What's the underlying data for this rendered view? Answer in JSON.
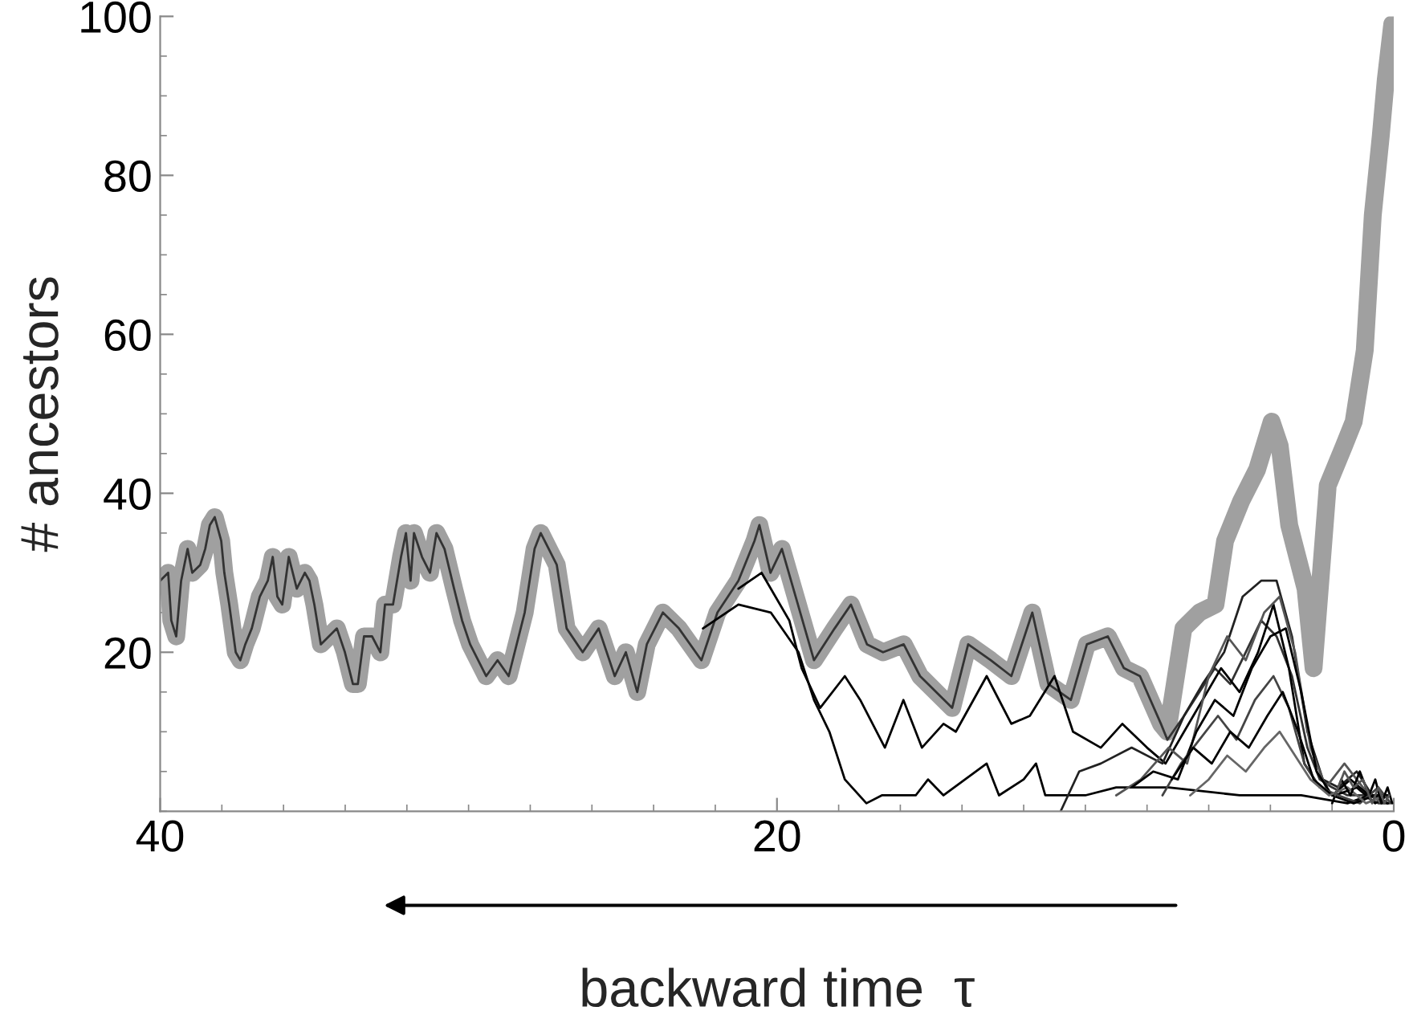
{
  "chart_data": {
    "type": "line",
    "xlabel": "backward time  τ",
    "ylabel": "# ancestors",
    "xlim": [
      40,
      0
    ],
    "xticks": [
      40,
      20,
      0
    ],
    "ylim": [
      0,
      100
    ],
    "yticks": [
      20,
      40,
      60,
      80,
      100
    ],
    "grid": false,
    "legend": false,
    "series": [
      {
        "color": "#a0a0a0",
        "x": [
          40.0,
          39.74,
          39.64,
          39.48,
          39.32,
          39.11,
          38.96,
          38.7,
          38.54,
          38.39,
          38.23,
          38.02,
          37.92,
          37.76,
          37.55,
          37.4,
          37.24,
          37.03,
          36.77,
          36.51,
          36.35,
          36.2,
          36.04,
          35.83,
          35.57,
          35.31,
          35.16,
          35.0,
          34.79,
          34.53,
          34.27,
          34.01,
          33.75,
          33.59,
          33.39,
          33.13,
          32.86,
          32.71,
          32.45,
          32.19,
          32.03,
          31.88,
          31.77,
          31.51,
          31.25,
          31.04,
          30.78,
          30.47,
          30.21,
          29.95,
          29.43,
          29.06,
          28.7,
          28.18,
          27.86,
          27.66,
          27.14,
          26.82,
          26.3,
          25.78,
          25.26,
          24.9,
          24.53,
          24.22,
          23.7,
          23.18,
          22.45,
          21.93,
          21.25,
          20.73,
          20.57,
          20.21,
          19.84,
          19.32,
          18.8,
          18.13,
          17.6,
          17.08,
          16.56,
          15.89,
          15.36,
          14.84,
          14.32,
          13.8,
          13.07,
          12.4,
          11.72,
          11.2,
          10.47,
          9.95,
          9.27,
          8.75,
          8.23,
          7.55,
          7.34,
          6.82,
          6.3,
          5.78,
          5.47,
          4.95,
          4.43,
          3.96,
          3.7,
          3.39,
          2.86,
          2.6,
          2.34,
          2.14,
          1.61,
          1.3,
          0.94,
          0.68,
          0.42,
          0.26,
          0.05
        ],
        "values": [
          29,
          30,
          24,
          22,
          29,
          33,
          30,
          31,
          33,
          36,
          37,
          34,
          30,
          26,
          20,
          19,
          21,
          23,
          27,
          29,
          32,
          27,
          26,
          32,
          28,
          30,
          29,
          26,
          21,
          22,
          23,
          20,
          16,
          16,
          22,
          22,
          20,
          26,
          26,
          32,
          35,
          29,
          35,
          32,
          30,
          35,
          33,
          28,
          24,
          21,
          17,
          19,
          17,
          25,
          33,
          35,
          31,
          23,
          20,
          23,
          17,
          20,
          15,
          21,
          25,
          23,
          19,
          25,
          29,
          34,
          36,
          30,
          33,
          26,
          19,
          23,
          26,
          21,
          20,
          21,
          17,
          15,
          13,
          21,
          19,
          17,
          25,
          16,
          14,
          21,
          22,
          18,
          17,
          11,
          10,
          23,
          25,
          26,
          34,
          39,
          43,
          49,
          46,
          36,
          28,
          18,
          31,
          41,
          46,
          49,
          58,
          75,
          85,
          92,
          99
        ]
      },
      {
        "color": "#333333",
        "x": [
          40.0,
          39.74,
          39.64,
          39.48,
          39.32,
          39.11,
          38.96,
          38.7,
          38.54,
          38.39,
          38.23,
          38.02,
          37.92,
          37.76,
          37.55,
          37.4,
          37.24,
          37.03,
          36.77,
          36.51,
          36.35,
          36.2,
          36.04,
          35.83,
          35.57,
          35.31,
          35.16,
          35.0,
          34.79,
          34.53,
          34.27,
          34.01,
          33.75,
          33.59,
          33.39,
          33.13,
          32.86,
          32.71,
          32.45,
          32.19,
          32.03,
          31.88,
          31.77,
          31.51,
          31.25,
          31.04,
          30.78,
          30.47,
          30.21,
          29.95,
          29.43,
          29.06,
          28.7,
          28.18,
          27.86,
          27.66,
          27.14,
          26.82,
          26.3,
          25.78,
          25.26,
          24.9,
          24.53,
          24.22,
          23.7,
          23.18,
          22.45,
          21.93,
          21.25,
          20.73,
          20.57,
          20.21,
          19.84,
          19.32,
          18.8,
          18.13,
          17.6,
          17.08,
          16.56,
          15.89,
          15.36,
          14.84,
          14.32,
          13.8,
          13.07,
          12.4,
          11.72,
          11.2,
          10.47,
          9.95,
          9.27,
          8.75,
          8.23,
          7.55,
          7.34,
          6.8,
          6.3,
          5.8,
          5.3,
          4.8,
          4.3,
          3.8,
          3.3,
          2.8,
          2.4,
          2.0,
          1.5,
          1.0,
          0.5,
          0.15
        ],
        "values": [
          29,
          30,
          24,
          22,
          29,
          33,
          30,
          31,
          33,
          36,
          37,
          34,
          30,
          26,
          20,
          19,
          21,
          23,
          27,
          29,
          32,
          27,
          26,
          32,
          28,
          30,
          29,
          26,
          21,
          22,
          23,
          20,
          16,
          16,
          22,
          22,
          20,
          26,
          26,
          32,
          35,
          29,
          35,
          32,
          30,
          35,
          33,
          28,
          24,
          21,
          17,
          19,
          17,
          25,
          33,
          35,
          31,
          23,
          20,
          23,
          17,
          20,
          15,
          21,
          25,
          23,
          19,
          25,
          29,
          34,
          36,
          30,
          33,
          26,
          19,
          23,
          26,
          21,
          20,
          21,
          17,
          15,
          13,
          21,
          19,
          17,
          25,
          16,
          14,
          21,
          22,
          18,
          17,
          11,
          9,
          12,
          15,
          18,
          16,
          20,
          24,
          22,
          17,
          8,
          4,
          3,
          2,
          2,
          1,
          1
        ]
      },
      {
        "color": "#000000",
        "x": [
          22.4,
          21.25,
          20.2,
          19.3,
          18.8,
          18.3,
          17.8,
          17.1,
          16.6,
          15.5,
          15.1,
          14.6,
          13.2,
          12.8,
          12.0,
          11.6,
          11.3,
          10.0,
          9.0,
          7.3,
          5.0,
          3.0,
          1.5,
          0.8,
          0.2
        ],
        "values": [
          23,
          26,
          25,
          20,
          14,
          10,
          4,
          1,
          2,
          2,
          4,
          2,
          6,
          2,
          4,
          6,
          2,
          2,
          3,
          3,
          2,
          2,
          1,
          2,
          1
        ]
      },
      {
        "color": "#000000",
        "x": [
          21.25,
          20.5,
          19.6,
          19.2,
          18.6,
          17.8,
          17.3,
          16.5,
          15.9,
          15.3,
          14.6,
          14.2,
          13.2,
          12.4,
          11.8,
          11.0,
          10.4,
          9.5,
          8.8,
          8.0,
          7.4,
          6.8,
          6.2,
          5.6,
          5.0,
          4.4,
          3.9,
          3.4,
          2.9,
          2.4,
          1.9,
          1.2,
          0.6,
          0.2
        ],
        "values": [
          28,
          30,
          24,
          18,
          13,
          17,
          14,
          8,
          14,
          8,
          11,
          10,
          17,
          11,
          12,
          17,
          10,
          8,
          11,
          8,
          6,
          10,
          14,
          18,
          15,
          20,
          26,
          18,
          6,
          3,
          2,
          3,
          1,
          2
        ]
      },
      {
        "color": "#222222",
        "x": [
          10.8,
          10.2,
          9.5,
          8.5,
          7.5,
          6.8,
          6.2,
          5.5,
          4.9,
          4.3,
          3.8,
          3.3,
          2.8,
          2.3,
          1.8,
          1.2,
          0.7,
          0.2
        ],
        "values": [
          0,
          5,
          6,
          8,
          6,
          12,
          16,
          20,
          27,
          29,
          29,
          22,
          10,
          4,
          3,
          5,
          2,
          1
        ]
      },
      {
        "color": "#555555",
        "x": [
          9.0,
          8.2,
          7.3,
          6.7,
          6.0,
          5.4,
          4.8,
          4.2,
          3.7,
          3.2,
          2.7,
          2.2,
          1.6,
          1.0,
          0.4
        ],
        "values": [
          2,
          4,
          8,
          6,
          17,
          22,
          19,
          25,
          27,
          20,
          8,
          3,
          6,
          3,
          1
        ]
      },
      {
        "color": "#000000",
        "x": [
          8.5,
          7.8,
          7.0,
          6.4,
          5.8,
          5.2,
          4.6,
          4.0,
          3.5,
          3.0,
          2.5,
          2.0,
          1.4,
          0.8,
          0.2
        ],
        "values": [
          3,
          5,
          4,
          10,
          14,
          12,
          18,
          22,
          23,
          15,
          5,
          2,
          4,
          2,
          2
        ]
      },
      {
        "color": "#444444",
        "x": [
          7.5,
          6.9,
          6.3,
          5.7,
          5.1,
          4.5,
          3.9,
          3.4,
          2.9,
          2.4,
          1.8,
          1.1,
          0.5,
          0.1
        ],
        "values": [
          2,
          6,
          9,
          12,
          9,
          14,
          17,
          13,
          6,
          3,
          2,
          1,
          3,
          1
        ]
      },
      {
        "color": "#000000",
        "x": [
          7.2,
          6.5,
          5.9,
          5.3,
          4.7,
          4.1,
          3.6,
          3.1,
          2.6,
          2.0,
          1.3,
          0.6,
          0.2
        ],
        "values": [
          4,
          8,
          6,
          10,
          8,
          12,
          15,
          10,
          4,
          2,
          1,
          2,
          1
        ]
      },
      {
        "color": "#666666",
        "x": [
          6.6,
          6.0,
          5.4,
          4.8,
          4.2,
          3.7,
          3.2,
          2.7,
          2.1,
          1.5,
          0.9,
          0.3
        ],
        "values": [
          2,
          4,
          7,
          5,
          8,
          10,
          7,
          4,
          2,
          3,
          1,
          2
        ]
      },
      {
        "color": "#000000",
        "x": [
          2.0,
          1.7,
          1.4,
          1.1,
          0.8,
          0.6,
          0.4,
          0.2,
          0.05
        ],
        "values": [
          1,
          4,
          2,
          5,
          2,
          4,
          1,
          3,
          1
        ]
      },
      {
        "color": "#555555",
        "x": [
          1.9,
          1.6,
          1.3,
          1.0,
          0.7,
          0.5,
          0.3,
          0.15
        ],
        "values": [
          2,
          5,
          3,
          4,
          1,
          3,
          1,
          2
        ]
      }
    ]
  }
}
